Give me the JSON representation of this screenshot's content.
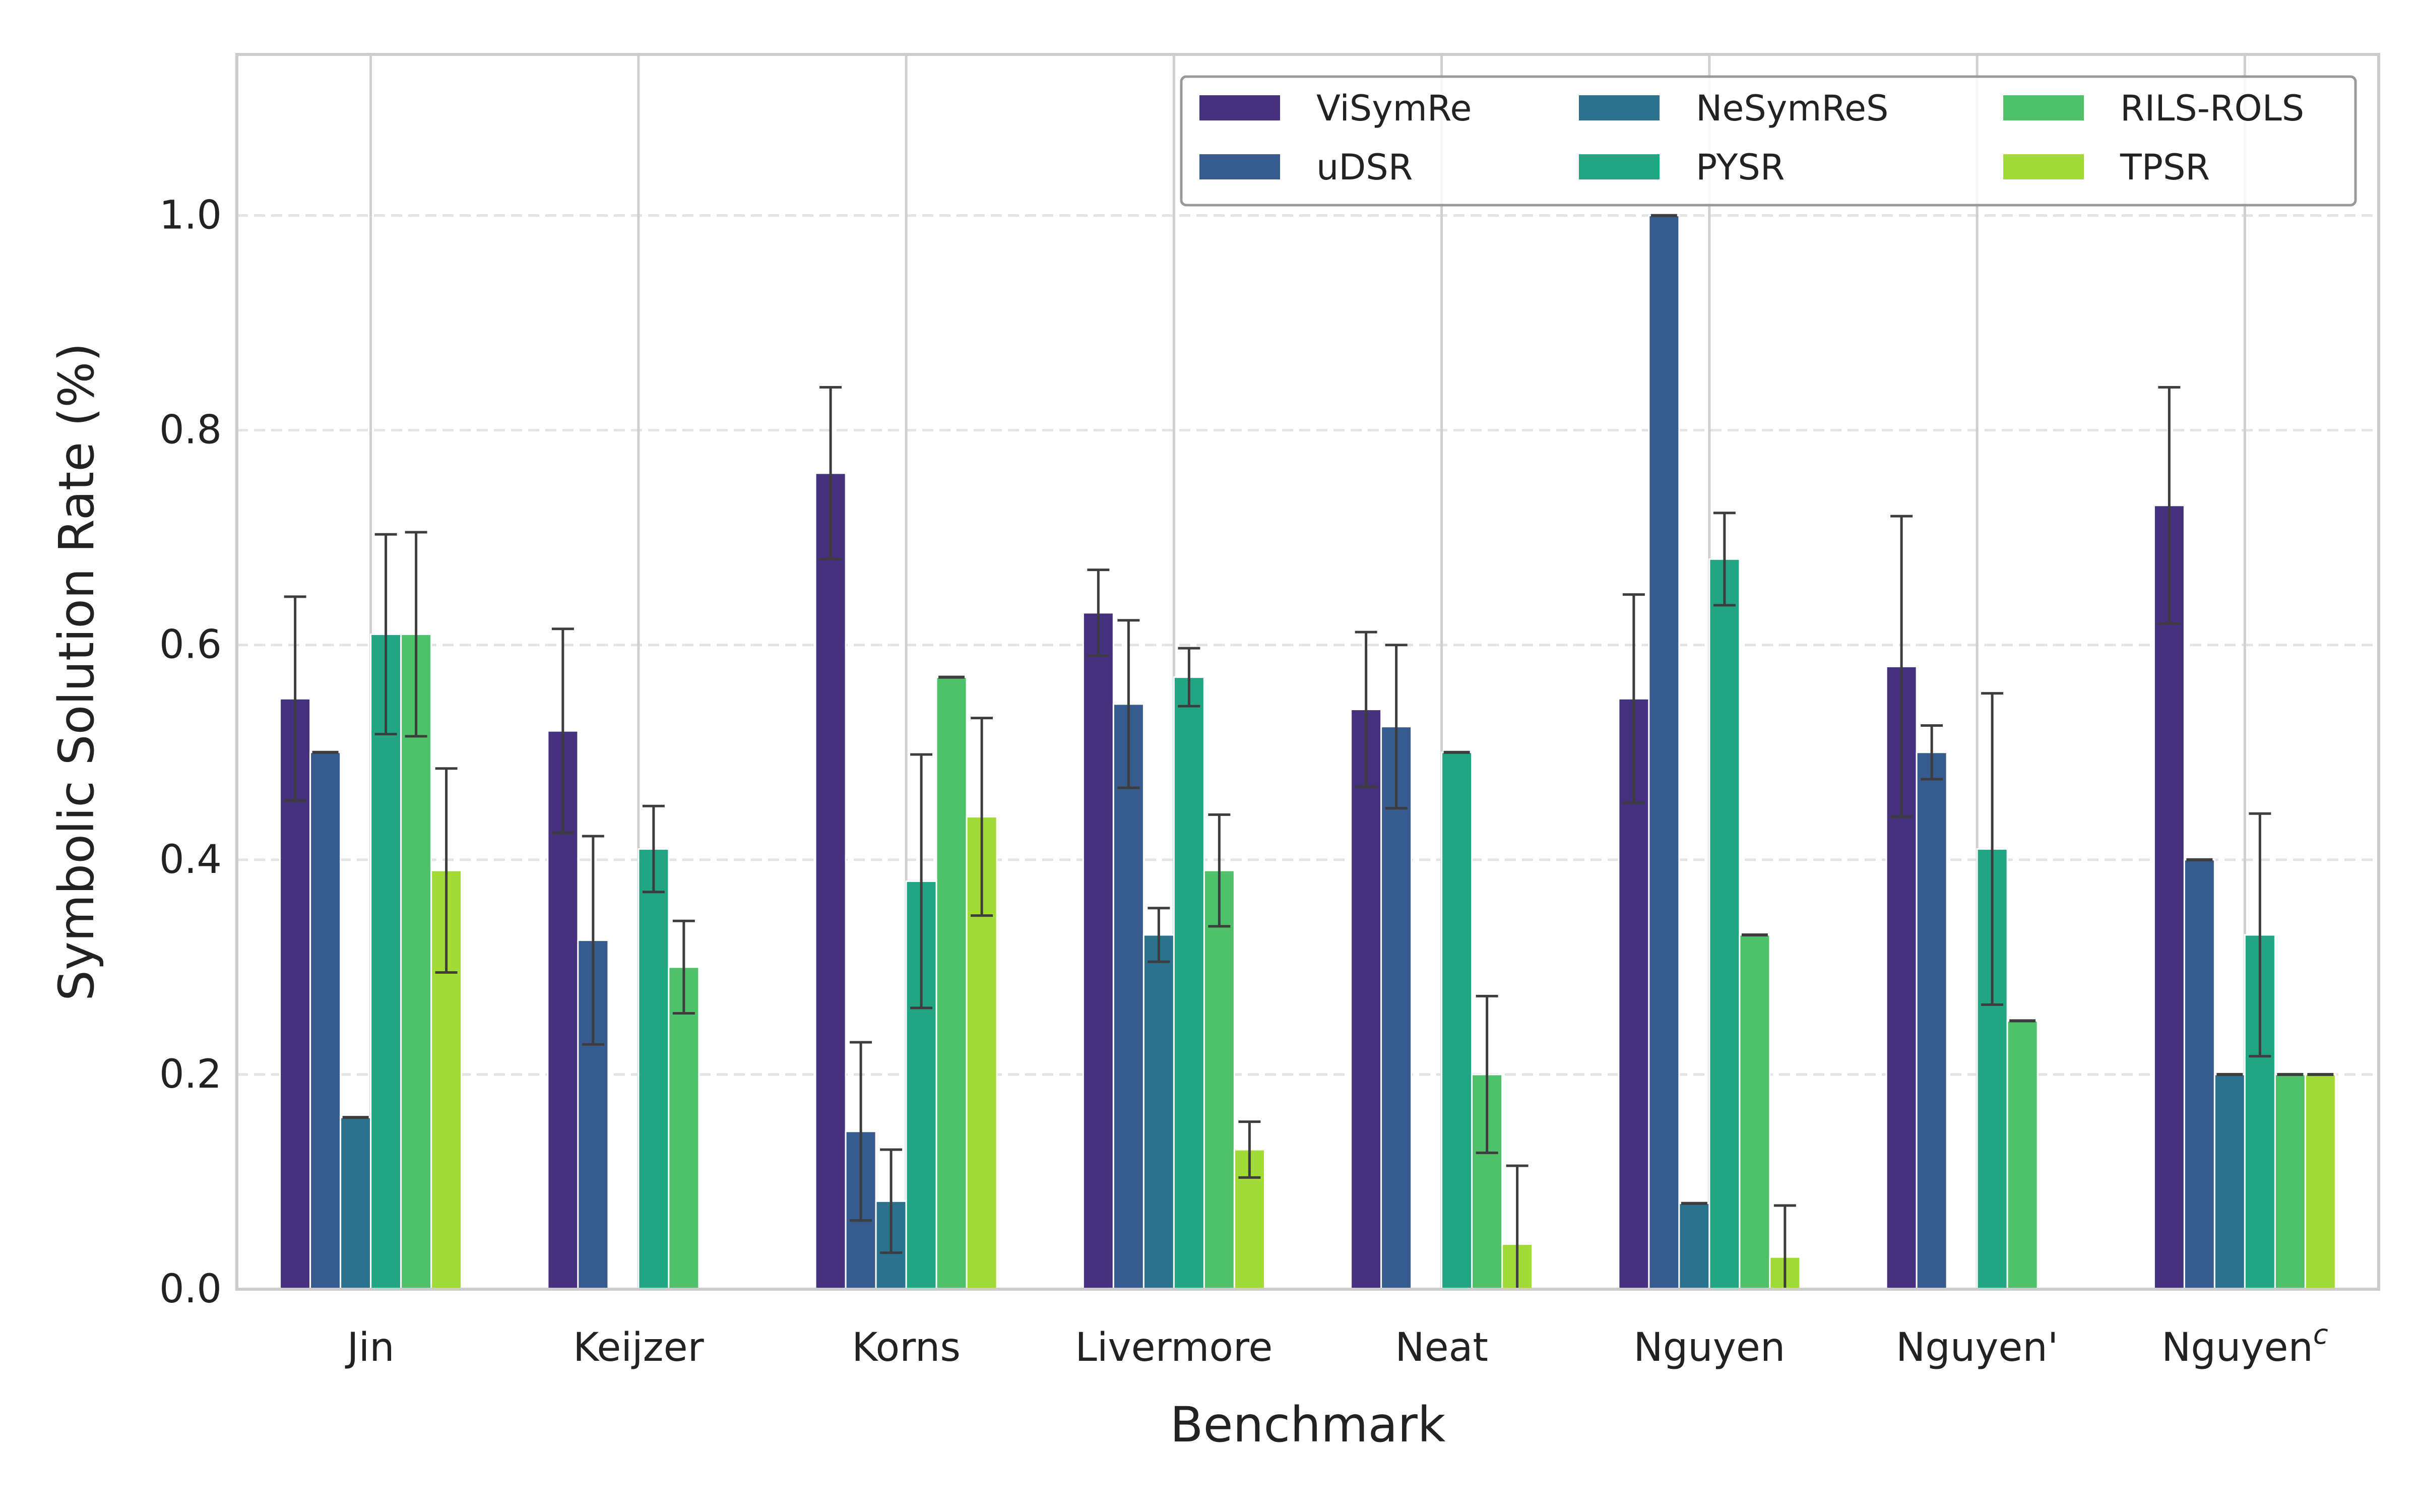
{
  "chart_data": {
    "type": "bar",
    "title": "",
    "xlabel": "Benchmark",
    "ylabel": "Symbolic Solution Rate (%)",
    "ylim": [
      0,
      1.15
    ],
    "yticks": [
      "0.0",
      "0.2",
      "0.4",
      "0.6",
      "0.8",
      "1.0"
    ],
    "grid": "horizontal dashed",
    "legend_position": "top-right",
    "categories": [
      "Jin",
      "Keijzer",
      "Korns",
      "Livermore",
      "Neat",
      "Nguyen",
      "Nguyen'",
      "Nguyen"
    ],
    "last_category_superscript": "c",
    "series": [
      {
        "name": "ViSymRe",
        "color": "#46317e",
        "values": [
          0.55,
          0.52,
          0.76,
          0.63,
          0.54,
          0.55,
          0.58,
          0.73
        ],
        "errors": [
          0.095,
          0.095,
          0.08,
          0.04,
          0.072,
          0.097,
          0.14,
          0.11
        ]
      },
      {
        "name": "uDSR",
        "color": "#365b8c",
        "values": [
          0.5,
          0.325,
          0.147,
          0.545,
          0.524,
          1.0,
          0.5,
          0.4
        ],
        "errors": [
          0,
          0.097,
          0.083,
          0.078,
          0.076,
          0,
          0.025,
          0
        ]
      },
      {
        "name": "NeSymReS",
        "color": "#2c728e",
        "values": [
          0.16,
          0,
          0.082,
          0.33,
          0,
          0.08,
          0,
          0.2
        ],
        "errors": [
          0,
          0,
          0.048,
          0.025,
          0,
          0,
          0,
          0
        ]
      },
      {
        "name": "PYSR",
        "color": "#21a585",
        "values": [
          0.61,
          0.41,
          0.38,
          0.57,
          0.5,
          0.68,
          0.41,
          0.33
        ],
        "errors": [
          0.093,
          0.04,
          0.118,
          0.027,
          0,
          0.043,
          0.145,
          0.113
        ]
      },
      {
        "name": "RILS-ROLS",
        "color": "#4fc16b",
        "values": [
          0.61,
          0.3,
          0.57,
          0.39,
          0.2,
          0.33,
          0.25,
          0.2
        ],
        "errors": [
          0.095,
          0.043,
          0,
          0.052,
          0.073,
          0,
          0,
          0
        ]
      },
      {
        "name": "TPSR",
        "color": "#a2da37",
        "values": [
          0.39,
          0,
          0.44,
          0.13,
          0.042,
          0.03,
          0,
          0.2
        ],
        "errors": [
          0.095,
          0,
          0.092,
          0.026,
          0.073,
          0.048,
          0,
          0
        ]
      }
    ]
  }
}
